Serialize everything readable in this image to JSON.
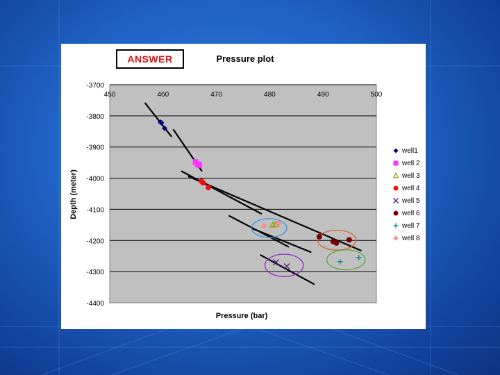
{
  "answer_label": "ANSWER",
  "chart_data": {
    "type": "scatter",
    "title": "Pressure plot",
    "xlabel": "Pressure (bar)",
    "ylabel": "Depth (meter)",
    "xlim": [
      450,
      500
    ],
    "ylim": [
      -4400,
      -3700
    ],
    "x_ticks": [
      450,
      460,
      470,
      480,
      490,
      500
    ],
    "y_ticks": [
      -3700,
      -3800,
      -3900,
      -4000,
      -4100,
      -4200,
      -4300,
      -4400
    ],
    "x_tick_position": "top",
    "grid": "horizontal",
    "legend_position": "right",
    "series": [
      {
        "name": "well1",
        "marker": "diamond",
        "color": "#00007a",
        "points": [
          [
            459.5,
            -3820
          ],
          [
            460.3,
            -3840
          ],
          [
            459.7,
            -3822
          ]
        ]
      },
      {
        "name": "well 2",
        "marker": "square",
        "color": "#ff33ff",
        "points": [
          [
            466.1,
            -3948
          ],
          [
            466.8,
            -3958
          ],
          [
            466.5,
            -3955
          ]
        ]
      },
      {
        "name": "well 3",
        "marker": "triangle",
        "color": "#999900",
        "points": [
          [
            481.1,
            -4148
          ],
          [
            480.6,
            -4150
          ]
        ]
      },
      {
        "name": "well 4",
        "marker": "circle",
        "color": "#ee1111",
        "points": [
          [
            467.5,
            -4015
          ],
          [
            468.5,
            -4030
          ],
          [
            467.2,
            -4010
          ]
        ]
      },
      {
        "name": "well 5",
        "marker": "x",
        "color": "#551188",
        "points": [
          [
            481.2,
            -4270
          ],
          [
            483.2,
            -4283
          ]
        ]
      },
      {
        "name": "well 6",
        "marker": "circle",
        "color": "#770000",
        "points": [
          [
            489.3,
            -4188
          ],
          [
            491.9,
            -4203
          ],
          [
            492.5,
            -4208
          ],
          [
            494.9,
            -4198
          ]
        ]
      },
      {
        "name": "well 7",
        "marker": "plus",
        "color": "#008888",
        "points": [
          [
            493.2,
            -4268
          ],
          [
            496.7,
            -4255
          ]
        ]
      },
      {
        "name": "well 8",
        "marker": "diamond",
        "color": "#ff8888",
        "points": [
          [
            478.9,
            -4153
          ],
          [
            481.7,
            -4145
          ]
        ]
      }
    ],
    "trend_lines": [
      {
        "x": [
          456.6,
          461.6
        ],
        "y": [
          -3758,
          -3867
        ]
      },
      {
        "x": [
          461.9,
          467.3
        ],
        "y": [
          -3843,
          -3978
        ]
      },
      {
        "x": [
          464.7,
          497.2
        ],
        "y": [
          -3994,
          -4233
        ]
      },
      {
        "x": [
          463.4,
          478.5
        ],
        "y": [
          -3977,
          -4115
        ]
      },
      {
        "x": [
          472.3,
          483.6
        ],
        "y": [
          -4120,
          -4221
        ]
      },
      {
        "x": [
          476.5,
          487.8
        ],
        "y": [
          -4160,
          -4238
        ]
      },
      {
        "x": [
          478.2,
          488.4
        ],
        "y": [
          -4246,
          -4341
        ]
      }
    ],
    "ellipses": [
      {
        "cx": 479.9,
        "cy": -4160,
        "rx": 3.3,
        "ry": 30,
        "color": "#3399ee"
      },
      {
        "cx": 482.7,
        "cy": -4280,
        "rx": 3.6,
        "ry": 36,
        "color": "#9922cc"
      },
      {
        "cx": 492.6,
        "cy": -4199,
        "rx": 3.6,
        "ry": 32,
        "color": "#e0602a"
      },
      {
        "cx": 494.3,
        "cy": -4262,
        "rx": 3.6,
        "ry": 32,
        "color": "#55aa33"
      }
    ]
  }
}
